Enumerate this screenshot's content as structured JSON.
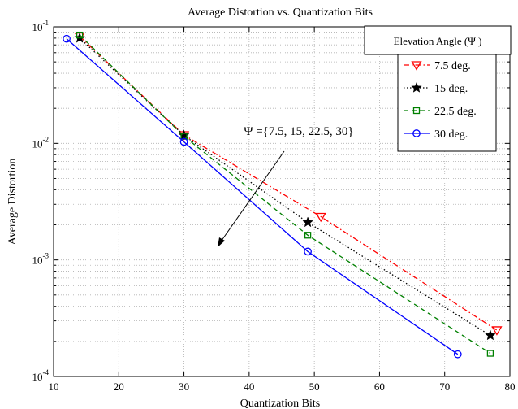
{
  "chart_data": {
    "type": "line",
    "title": "Average Distortion vs. Quantization Bits",
    "xlabel": "Quantization Bits",
    "ylabel": "Average Distortion",
    "xlim": [
      10,
      80
    ],
    "ylim": [
      0.0001,
      0.1
    ],
    "yscale": "log",
    "grid": true,
    "x_ticks": [
      "10",
      "20",
      "30",
      "40",
      "50",
      "60",
      "70",
      "80"
    ],
    "legend": {
      "title": "Elevation Angle (Ψ )",
      "placement": "top-right"
    },
    "annotation": "Ψ ={7.5, 15, 22.5, 30}",
    "series": [
      {
        "name": "7.5 deg.",
        "color": "#ff0000",
        "dash": "dashdot",
        "marker": "triangle-down",
        "x": [
          14,
          30,
          51,
          78
        ],
        "y": [
          0.083,
          0.0118,
          0.00235,
          0.00025
        ]
      },
      {
        "name": "15 deg.",
        "color": "#000000",
        "dash": "dotted",
        "marker": "star",
        "x": [
          14,
          30,
          49,
          77
        ],
        "y": [
          0.08,
          0.0117,
          0.0021,
          0.000225
        ]
      },
      {
        "name": "22.5 deg.",
        "color": "#008000",
        "dash": "dashed",
        "marker": "square",
        "x": [
          14,
          30,
          49,
          77
        ],
        "y": [
          0.085,
          0.0115,
          0.00163,
          0.000158
        ]
      },
      {
        "name": "30 deg.",
        "color": "#0000ff",
        "dash": "solid",
        "marker": "circle",
        "x": [
          12,
          30,
          49,
          72
        ],
        "y": [
          0.079,
          0.0103,
          0.00118,
          0.000155
        ]
      }
    ]
  }
}
